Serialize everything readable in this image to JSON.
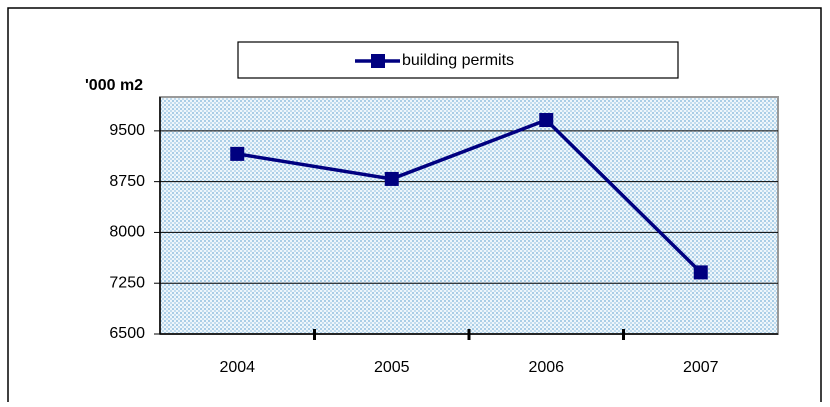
{
  "chart_data": {
    "type": "line",
    "y_label": "'000 m2",
    "categories": [
      "2004",
      "2005",
      "2006",
      "2007"
    ],
    "series": [
      {
        "name": "building permits",
        "color": "#000080",
        "values": [
          9160,
          8790,
          9660,
          7410
        ]
      }
    ],
    "ylim": [
      6500,
      10000
    ],
    "yticks": [
      6500,
      7250,
      8000,
      8750,
      9500
    ],
    "grid": true,
    "legend": "top"
  }
}
